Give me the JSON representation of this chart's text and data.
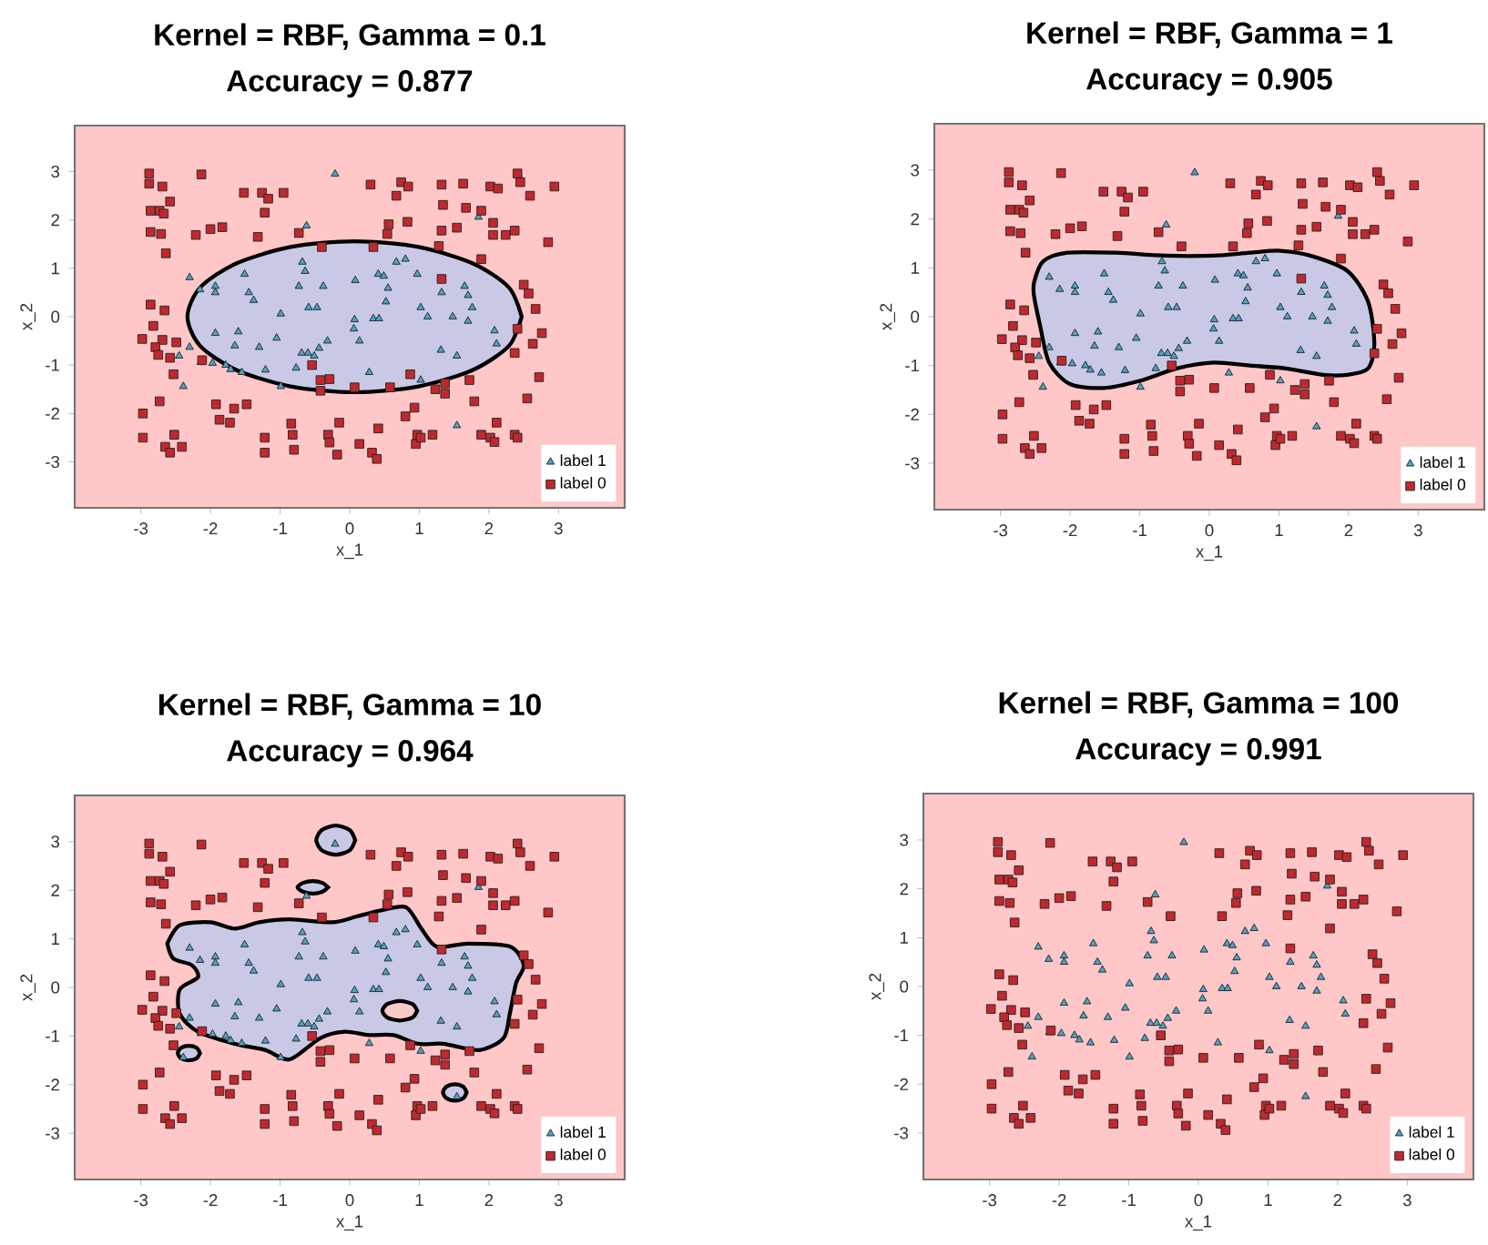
{
  "chart_data": [
    {
      "type": "scatter",
      "title": "Kernel = RBF, Gamma = 0.1",
      "subtitle": "Accuracy = 0.877",
      "xlabel": "x_1",
      "ylabel": "x_2",
      "xlim": [
        -3.95,
        3.95
      ],
      "ylim": [
        -3.95,
        3.95
      ],
      "xticks": [
        -3,
        -2,
        -1,
        0,
        1,
        2,
        3
      ],
      "yticks": [
        -3,
        -2,
        -1,
        0,
        1,
        2,
        3
      ],
      "legend": "bottom right",
      "series": [
        {
          "type": "area",
          "color": "#c9c9e6",
          "x": [
            2.47,
            2.29,
            1.77,
            0.99,
            0.07,
            -0.85,
            -1.63,
            -2.15,
            -2.33,
            -2.15,
            -1.63,
            -0.85,
            0.07,
            0.99,
            1.77,
            2.29,
            2.47
          ],
          "values": [
            0,
            0.6,
            1.1,
            1.44,
            1.56,
            1.44,
            1.1,
            0.6,
            0,
            -0.6,
            -1.1,
            -1.44,
            -1.56,
            -1.44,
            -1.1,
            -0.6,
            0
          ]
        },
        {
          "name": "label 1",
          "color": "#4aa3c8",
          "marker": "triangle",
          "x": [
            -0.21,
            -0.62,
            1.85,
            -2.3,
            -2.15,
            -1.93,
            -1.93,
            -1.51,
            -1.45,
            -1.38,
            -0.99,
            -0.73,
            -0.64,
            -0.68,
            -0.59,
            -0.47,
            -0.38,
            0.08,
            0.07,
            0.06,
            0.14,
            0.34,
            0.42,
            0.41,
            0.49,
            0.52,
            0.55,
            0.67,
            0.8,
            0.97,
            1.02,
            1.12,
            1.32,
            1.48,
            1.65,
            1.7,
            1.76,
            1.7,
            2.08,
            2.11,
            -2.3,
            -2.45,
            -2.39,
            -2.14,
            -1.93,
            -1.97,
            -1.78,
            -1.71,
            -1.55,
            -1.6,
            -1.65,
            -1.3,
            -1.21,
            -1.05,
            -0.99,
            -0.77,
            -0.69,
            -0.6,
            -0.51,
            -0.44,
            -0.32,
            0.28,
            1.02,
            1.31,
            1.54,
            1.54
          ],
          "values": [
            2.95,
            1.88,
            2.06,
            0.81,
            0.56,
            0.63,
            0.5,
            0.88,
            0.5,
            0.34,
            0.06,
            0.63,
            0.94,
            1.13,
            0.19,
            0.19,
            0.63,
            0.75,
            -0.06,
            -0.25,
            -0.5,
            -0.04,
            -0.04,
            0.88,
            0.84,
            0.31,
            0.59,
            1.13,
            1.19,
            0.88,
            0.19,
            0,
            0.5,
            0,
            0.63,
            0.44,
            0.19,
            -0.09,
            -0.29,
            -0.56,
            -0.63,
            -0.81,
            -1.44,
            -0.94,
            -0.34,
            -0.96,
            -1.0,
            -1.09,
            -1.15,
            -0.31,
            -0.6,
            -0.63,
            -1.1,
            -0.44,
            -1.44,
            -1.06,
            -0.75,
            -0.75,
            -0.81,
            -0.65,
            -0.5,
            -1.15,
            -1.31,
            -0.69,
            -0.81,
            -2.25
          ]
        },
        {
          "name": "label 0",
          "color": "#c0282d",
          "marker": "square",
          "x": [
            -2.88,
            -2.88,
            -2.69,
            -2.58,
            -2.86,
            -2.73,
            -2.67,
            -2.86,
            -2.71,
            -2.64,
            -2.13,
            -1.52,
            -1.26,
            -1.17,
            -1.22,
            -1.32,
            -0.95,
            -0.73,
            -0.4,
            -2.21,
            -2.0,
            -1.83,
            0.3,
            0.67,
            0.74,
            0.84,
            0.83,
            0.56,
            0.54,
            0.34,
            1.32,
            1.63,
            2.02,
            2.13,
            2.41,
            2.45,
            2.59,
            2.94,
            1.34,
            1.67,
            1.89,
            2.06,
            1.54,
            1.32,
            2.06,
            2.24,
            2.37,
            2.85,
            1.28,
            1.89,
            2.5,
            2.57,
            2.67,
            2.76,
            2.63,
            2.41,
            2.37,
            2.72,
            2.55,
            1.32,
            -2.86,
            -2.66,
            -2.82,
            -2.98,
            -2.69,
            -2.79,
            -2.75,
            -2.58,
            -2.49,
            -2.12,
            -2.53,
            -2.73,
            -2.97,
            -2.97,
            -2.52,
            -2.65,
            -2.58,
            -2.41,
            -1.92,
            -1.87,
            -1.72,
            -1.66,
            -1.48,
            -1.22,
            -1.22,
            -0.84,
            -0.82,
            -0.8,
            -0.54,
            -0.42,
            -0.29,
            -0.42,
            -0.31,
            -0.29,
            -0.15,
            -0.18,
            0.07,
            0.14,
            0.41,
            0.32,
            0.39,
            0.58,
            0.87,
            0.93,
            0.8,
            0.97,
            0.95,
            1.02,
            1.19,
            1.23,
            1.37,
            1.37,
            1.72,
            1.79,
            1.89,
            2.02,
            2.08,
            2.11,
            2.37,
            2.41
          ],
          "values": [
            2.96,
            2.75,
            2.69,
            2.38,
            2.19,
            2.19,
            2.13,
            1.75,
            1.71,
            1.31,
            2.94,
            2.56,
            2.56,
            2.44,
            2.15,
            1.65,
            2.56,
            1.73,
            1.44,
            1.69,
            1.81,
            1.85,
            2.73,
            2.5,
            2.78,
            2.69,
            1.96,
            1.91,
            1.71,
            1.44,
            2.73,
            2.75,
            2.69,
            2.65,
            2.96,
            2.78,
            2.5,
            2.69,
            2.31,
            2.25,
            2.19,
            1.94,
            1.84,
            1.78,
            1.69,
            1.69,
            1.78,
            1.54,
            1.46,
            1.19,
            0.66,
            0.48,
            0.16,
            -0.34,
            -0.56,
            -0.25,
            -0.75,
            -1.25,
            -1.69,
            0.78,
            0.25,
            0.13,
            -0.19,
            -0.46,
            -0.48,
            -0.63,
            -0.79,
            -0.85,
            -0.53,
            -0.9,
            -1.19,
            -1.75,
            -2.0,
            -2.5,
            -2.44,
            -2.69,
            -2.81,
            -2.69,
            -1.81,
            -2.13,
            -2.19,
            -1.9,
            -1.81,
            -2.5,
            -2.81,
            -2.21,
            -2.44,
            -2.75,
            -1.0,
            -1.31,
            -1.29,
            -1.53,
            -2.44,
            -2.6,
            -2.19,
            -2.85,
            -1.46,
            -2.63,
            -2.31,
            -2.81,
            -2.94,
            -1.46,
            -1.19,
            -1.88,
            -2.06,
            -2.44,
            -2.63,
            -2.5,
            -2.44,
            -1.5,
            -1.59,
            -1.38,
            -1.31,
            -1.75,
            -2.44,
            -2.5,
            -2.59,
            -2.19,
            -2.44,
            -2.5
          ]
        }
      ]
    },
    {
      "type": "scatter",
      "title": "Kernel = RBF, Gamma = 1",
      "subtitle": "Accuracy = 0.905",
      "xlabel": "x_1",
      "ylabel": "x_2",
      "xlim": [
        -3.95,
        3.95
      ],
      "ylim": [
        -3.95,
        3.95
      ],
      "xticks": [
        -3,
        -2,
        -1,
        0,
        1,
        2,
        3
      ],
      "yticks": [
        -3,
        -2,
        -1,
        0,
        1,
        2,
        3
      ],
      "legend": "bottom right",
      "series": [
        {
          "type": "area",
          "color": "#c9c9e6",
          "x": [
            -2.52,
            -2.39,
            -2.04,
            -1.34,
            -0.64,
            0.06,
            0.58,
            1.02,
            1.45,
            1.98,
            2.28,
            2.37,
            2.28,
            1.98,
            1.63,
            1.1,
            0.58,
            0.06,
            -0.47,
            -0.99,
            -1.51,
            -2.0,
            -2.3,
            -2.43,
            -2.52,
            -2.52
          ],
          "values": [
            0.69,
            1.13,
            1.31,
            1.31,
            1.25,
            1.25,
            1.31,
            1.35,
            1.25,
            0.94,
            0.31,
            -0.56,
            -1.06,
            -1.19,
            -1.19,
            -1.06,
            -1.0,
            -0.94,
            -1.06,
            -1.31,
            -1.46,
            -1.38,
            -0.94,
            -0.19,
            0.44,
            0.69
          ]
        },
        {
          "name": "label 1",
          "color": "#4aa3c8",
          "marker": "triangle",
          "x": [
            -0.21,
            -0.62,
            1.85,
            -2.3,
            -2.15,
            -1.93,
            -1.93,
            -1.51,
            -1.45,
            -1.38,
            -0.99,
            -0.73,
            -0.64,
            -0.68,
            -0.59,
            -0.47,
            -0.38,
            0.08,
            0.07,
            0.06,
            0.14,
            0.34,
            0.42,
            0.41,
            0.49,
            0.52,
            0.55,
            0.67,
            0.8,
            0.97,
            1.02,
            1.12,
            1.32,
            1.48,
            1.65,
            1.7,
            1.76,
            1.7,
            2.08,
            2.11,
            -2.3,
            -2.45,
            -2.39,
            -2.14,
            -1.93,
            -1.97,
            -1.78,
            -1.71,
            -1.55,
            -1.6,
            -1.65,
            -1.3,
            -1.21,
            -1.05,
            -0.99,
            -0.77,
            -0.69,
            -0.6,
            -0.51,
            -0.44,
            -0.32,
            0.28,
            1.02,
            1.31,
            1.54,
            1.54
          ],
          "values": [
            2.95,
            1.88,
            2.06,
            0.81,
            0.56,
            0.63,
            0.5,
            0.88,
            0.5,
            0.34,
            0.06,
            0.63,
            0.94,
            1.13,
            0.19,
            0.19,
            0.63,
            0.75,
            -0.06,
            -0.25,
            -0.5,
            -0.04,
            -0.04,
            0.88,
            0.84,
            0.31,
            0.59,
            1.13,
            1.19,
            0.88,
            0.19,
            0,
            0.5,
            0,
            0.63,
            0.44,
            0.19,
            -0.09,
            -0.29,
            -0.56,
            -0.63,
            -0.81,
            -1.44,
            -0.94,
            -0.34,
            -0.96,
            -1.0,
            -1.09,
            -1.15,
            -0.31,
            -0.6,
            -0.63,
            -1.1,
            -0.44,
            -1.44,
            -1.06,
            -0.75,
            -0.75,
            -0.81,
            -0.65,
            -0.5,
            -1.15,
            -1.31,
            -0.69,
            -0.81,
            -2.25
          ]
        },
        {
          "name": "label 0",
          "color": "#c0282d",
          "marker": "square",
          "x": [
            -2.88,
            -2.88,
            -2.69,
            -2.58,
            -2.86,
            -2.73,
            -2.67,
            -2.86,
            -2.71,
            -2.64,
            -2.13,
            -1.52,
            -1.26,
            -1.17,
            -1.22,
            -1.32,
            -0.95,
            -0.73,
            -0.4,
            -2.21,
            -2.0,
            -1.83,
            0.3,
            0.67,
            0.74,
            0.84,
            0.83,
            0.56,
            0.54,
            0.34,
            1.32,
            1.63,
            2.02,
            2.13,
            2.41,
            2.45,
            2.59,
            2.94,
            1.34,
            1.67,
            1.89,
            2.06,
            1.54,
            1.32,
            2.06,
            2.24,
            2.37,
            2.85,
            1.28,
            1.89,
            2.5,
            2.57,
            2.67,
            2.76,
            2.63,
            2.41,
            2.37,
            2.72,
            2.55,
            1.32,
            -2.86,
            -2.66,
            -2.82,
            -2.98,
            -2.69,
            -2.79,
            -2.75,
            -2.58,
            -2.49,
            -2.12,
            -2.53,
            -2.73,
            -2.97,
            -2.97,
            -2.52,
            -2.65,
            -2.58,
            -2.41,
            -1.92,
            -1.87,
            -1.72,
            -1.66,
            -1.48,
            -1.22,
            -1.22,
            -0.84,
            -0.82,
            -0.8,
            -0.54,
            -0.42,
            -0.29,
            -0.42,
            -0.31,
            -0.29,
            -0.15,
            -0.18,
            0.07,
            0.14,
            0.41,
            0.32,
            0.39,
            0.58,
            0.87,
            0.93,
            0.8,
            0.97,
            0.95,
            1.02,
            1.19,
            1.23,
            1.37,
            1.37,
            1.72,
            1.79,
            1.89,
            2.02,
            2.08,
            2.11,
            2.37,
            2.41
          ],
          "values": [
            2.96,
            2.75,
            2.69,
            2.38,
            2.19,
            2.19,
            2.13,
            1.75,
            1.71,
            1.31,
            2.94,
            2.56,
            2.56,
            2.44,
            2.15,
            1.65,
            2.56,
            1.73,
            1.44,
            1.69,
            1.81,
            1.85,
            2.73,
            2.5,
            2.78,
            2.69,
            1.96,
            1.91,
            1.71,
            1.44,
            2.73,
            2.75,
            2.69,
            2.65,
            2.96,
            2.78,
            2.5,
            2.69,
            2.31,
            2.25,
            2.19,
            1.94,
            1.84,
            1.78,
            1.69,
            1.69,
            1.78,
            1.54,
            1.46,
            1.19,
            0.66,
            0.48,
            0.16,
            -0.34,
            -0.56,
            -0.25,
            -0.75,
            -1.25,
            -1.69,
            0.78,
            0.25,
            0.13,
            -0.19,
            -0.46,
            -0.48,
            -0.63,
            -0.79,
            -0.85,
            -0.53,
            -0.9,
            -1.19,
            -1.75,
            -2.0,
            -2.5,
            -2.44,
            -2.69,
            -2.81,
            -2.69,
            -1.81,
            -2.13,
            -2.19,
            -1.9,
            -1.81,
            -2.5,
            -2.81,
            -2.21,
            -2.44,
            -2.75,
            -1.0,
            -1.31,
            -1.29,
            -1.53,
            -2.44,
            -2.6,
            -2.19,
            -2.85,
            -1.46,
            -2.63,
            -2.31,
            -2.81,
            -2.94,
            -1.46,
            -1.19,
            -1.88,
            -2.06,
            -2.44,
            -2.63,
            -2.5,
            -2.44,
            -1.5,
            -1.59,
            -1.38,
            -1.31,
            -1.75,
            -2.44,
            -2.5,
            -2.59,
            -2.19,
            -2.44,
            -2.5
          ]
        }
      ]
    },
    {
      "type": "scatter",
      "title": "Kernel = RBF, Gamma = 10",
      "subtitle": "Accuracy = 0.964",
      "xlabel": "x_1",
      "ylabel": "x_2",
      "xlim": [
        -3.95,
        3.95
      ],
      "ylim": [
        -3.95,
        3.95
      ],
      "xticks": [
        -3,
        -2,
        -1,
        0,
        1,
        2,
        3
      ],
      "yticks": [
        -3,
        -2,
        -1,
        0,
        1,
        2,
        3
      ],
      "legend": "bottom right",
      "series": [
        {
          "type": "area",
          "color": "#c9c9e6",
          "x": [
            -2.62,
            -2.44,
            -2.0,
            -1.65,
            -1.3,
            -0.86,
            -0.25,
            0.1,
            0.46,
            0.81,
            1.03,
            1.25,
            1.69,
            2.3,
            2.5,
            2.39,
            2.3,
            2.21,
            1.86,
            1.34,
            0.98,
            0.63,
            0.28,
            -0.07,
            -0.42,
            -0.86,
            -1.21,
            -1.65,
            -2.18,
            -2.44,
            -2.44,
            -2.18,
            -2.27,
            -2.53,
            -2.62
          ],
          "values": [
            0.9,
            1.28,
            1.34,
            1.21,
            1.34,
            1.4,
            1.34,
            1.46,
            1.59,
            1.65,
            1.21,
            0.84,
            0.9,
            0.84,
            0.46,
            0.09,
            -0.54,
            -1.04,
            -1.29,
            -1.16,
            -1.16,
            -0.98,
            -0.98,
            -0.91,
            -1.04,
            -1.48,
            -1.29,
            -1.16,
            -0.91,
            -0.54,
            -0.04,
            0.21,
            0.46,
            0.59,
            0.9
          ]
        },
        {
          "type": "area",
          "color": "#f9c9c9",
          "x": [
            0.97,
            0.9,
            0.72,
            0.54,
            0.47,
            0.54,
            0.72,
            0.9,
            0.97
          ],
          "values": [
            -0.48,
            -0.34,
            -0.28,
            -0.34,
            -0.48,
            -0.62,
            -0.68,
            -0.62,
            -0.48
          ]
        },
        {
          "type": "area",
          "color": "#c9c9e6",
          "x": [
            0.08,
            0.0,
            -0.2,
            -0.4,
            -0.48,
            -0.4,
            -0.2,
            0.0,
            0.08
          ],
          "values": [
            3.03,
            3.24,
            3.33,
            3.24,
            3.03,
            2.82,
            2.73,
            2.82,
            3.03
          ]
        },
        {
          "type": "area",
          "color": "#c9c9e6",
          "x": [
            1.68,
            1.63,
            1.51,
            1.39,
            1.34,
            1.39,
            1.51,
            1.63,
            1.68
          ],
          "values": [
            -2.16,
            -2.04,
            -1.99,
            -2.04,
            -2.16,
            -2.28,
            -2.33,
            -2.28,
            -2.16
          ]
        },
        {
          "type": "area",
          "color": "#c9c9e6",
          "x": [
            -0.31,
            -0.39,
            -0.53,
            -0.67,
            -0.75,
            -0.67,
            -0.53,
            -0.39,
            -0.31
          ],
          "values": [
            2.06,
            2.15,
            2.19,
            2.15,
            2.06,
            1.97,
            1.93,
            1.97,
            2.06
          ]
        },
        {
          "type": "area",
          "color": "#c9c9e6",
          "x": [
            -2.15,
            -2.2,
            -2.31,
            -2.42,
            -2.47,
            -2.42,
            -2.31,
            -2.2,
            -2.15
          ],
          "values": [
            -1.35,
            -1.24,
            -1.2,
            -1.24,
            -1.35,
            -1.46,
            -1.5,
            -1.46,
            -1.35
          ]
        },
        {
          "name": "label 1",
          "color": "#4aa3c8",
          "marker": "triangle",
          "x": [
            -0.21,
            -0.62,
            1.85,
            -2.3,
            -2.15,
            -1.93,
            -1.93,
            -1.51,
            -1.45,
            -1.38,
            -0.99,
            -0.73,
            -0.64,
            -0.68,
            -0.59,
            -0.47,
            -0.38,
            0.08,
            0.07,
            0.06,
            0.14,
            0.34,
            0.42,
            0.41,
            0.49,
            0.52,
            0.55,
            0.67,
            0.8,
            0.97,
            1.02,
            1.12,
            1.32,
            1.48,
            1.65,
            1.7,
            1.76,
            1.7,
            2.08,
            2.11,
            -2.3,
            -2.45,
            -2.39,
            -2.14,
            -1.93,
            -1.97,
            -1.78,
            -1.71,
            -1.55,
            -1.6,
            -1.65,
            -1.3,
            -1.21,
            -1.05,
            -0.99,
            -0.77,
            -0.69,
            -0.6,
            -0.51,
            -0.44,
            -0.32,
            0.28,
            1.02,
            1.31,
            1.54,
            1.54
          ],
          "values": [
            2.95,
            1.88,
            2.06,
            0.81,
            0.56,
            0.63,
            0.5,
            0.88,
            0.5,
            0.34,
            0.06,
            0.63,
            0.94,
            1.13,
            0.19,
            0.19,
            0.63,
            0.75,
            -0.06,
            -0.25,
            -0.5,
            -0.04,
            -0.04,
            0.88,
            0.84,
            0.31,
            0.59,
            1.13,
            1.19,
            0.88,
            0.19,
            0,
            0.5,
            0,
            0.63,
            0.44,
            0.19,
            -0.09,
            -0.29,
            -0.56,
            -0.63,
            -0.81,
            -1.44,
            -0.94,
            -0.34,
            -0.96,
            -1.0,
            -1.09,
            -1.15,
            -0.31,
            -0.6,
            -0.63,
            -1.1,
            -0.44,
            -1.44,
            -1.06,
            -0.75,
            -0.75,
            -0.81,
            -0.65,
            -0.5,
            -1.15,
            -1.31,
            -0.69,
            -0.81,
            -2.25
          ]
        },
        {
          "name": "label 0",
          "color": "#c0282d",
          "marker": "square",
          "x": [
            -2.88,
            -2.88,
            -2.69,
            -2.58,
            -2.86,
            -2.73,
            -2.67,
            -2.86,
            -2.71,
            -2.64,
            -2.13,
            -1.52,
            -1.26,
            -1.17,
            -1.22,
            -1.32,
            -0.95,
            -0.73,
            -0.4,
            -2.21,
            -2.0,
            -1.83,
            0.3,
            0.67,
            0.74,
            0.84,
            0.83,
            0.56,
            0.54,
            0.34,
            1.32,
            1.63,
            2.02,
            2.13,
            2.41,
            2.45,
            2.59,
            2.94,
            1.34,
            1.67,
            1.89,
            2.06,
            1.54,
            1.32,
            2.06,
            2.24,
            2.37,
            2.85,
            1.28,
            1.89,
            2.5,
            2.57,
            2.67,
            2.76,
            2.63,
            2.41,
            2.37,
            2.72,
            2.55,
            1.32,
            -2.86,
            -2.66,
            -2.82,
            -2.98,
            -2.69,
            -2.79,
            -2.75,
            -2.58,
            -2.49,
            -2.12,
            -2.53,
            -2.73,
            -2.97,
            -2.97,
            -2.52,
            -2.65,
            -2.58,
            -2.41,
            -1.92,
            -1.87,
            -1.72,
            -1.66,
            -1.48,
            -1.22,
            -1.22,
            -0.84,
            -0.82,
            -0.8,
            -0.54,
            -0.42,
            -0.29,
            -0.42,
            -0.31,
            -0.29,
            -0.15,
            -0.18,
            0.07,
            0.14,
            0.41,
            0.32,
            0.39,
            0.58,
            0.87,
            0.93,
            0.8,
            0.97,
            0.95,
            1.02,
            1.19,
            1.23,
            1.37,
            1.37,
            1.72,
            1.79,
            1.89,
            2.02,
            2.08,
            2.11,
            2.37,
            2.41
          ],
          "values": [
            2.96,
            2.75,
            2.69,
            2.38,
            2.19,
            2.19,
            2.13,
            1.75,
            1.71,
            1.31,
            2.94,
            2.56,
            2.56,
            2.44,
            2.15,
            1.65,
            2.56,
            1.73,
            1.44,
            1.69,
            1.81,
            1.85,
            2.73,
            2.5,
            2.78,
            2.69,
            1.96,
            1.91,
            1.71,
            1.44,
            2.73,
            2.75,
            2.69,
            2.65,
            2.96,
            2.78,
            2.5,
            2.69,
            2.31,
            2.25,
            2.19,
            1.94,
            1.84,
            1.78,
            1.69,
            1.69,
            1.78,
            1.54,
            1.46,
            1.19,
            0.66,
            0.48,
            0.16,
            -0.34,
            -0.56,
            -0.25,
            -0.75,
            -1.25,
            -1.69,
            0.78,
            0.25,
            0.13,
            -0.19,
            -0.46,
            -0.48,
            -0.63,
            -0.79,
            -0.85,
            -0.53,
            -0.9,
            -1.19,
            -1.75,
            -2.0,
            -2.5,
            -2.44,
            -2.69,
            -2.81,
            -2.69,
            -1.81,
            -2.13,
            -2.19,
            -1.9,
            -1.81,
            -2.5,
            -2.81,
            -2.21,
            -2.44,
            -2.75,
            -1.0,
            -1.31,
            -1.29,
            -1.53,
            -2.44,
            -2.6,
            -2.19,
            -2.85,
            -1.46,
            -2.63,
            -2.31,
            -2.81,
            -2.94,
            -1.46,
            -1.19,
            -1.88,
            -2.06,
            -2.44,
            -2.63,
            -2.5,
            -2.44,
            -1.5,
            -1.59,
            -1.38,
            -1.31,
            -1.75,
            -2.44,
            -2.5,
            -2.59,
            -2.19,
            -2.44,
            -2.5
          ]
        }
      ]
    },
    {
      "type": "scatter",
      "title": "Kernel = RBF, Gamma = 100",
      "subtitle": "Accuracy = 0.991",
      "xlabel": "x_1",
      "ylabel": "x_2",
      "xlim": [
        -3.95,
        3.95
      ],
      "ylim": [
        -3.95,
        3.95
      ],
      "xticks": [
        -3,
        -2,
        -1,
        0,
        1,
        2,
        3
      ],
      "yticks": [
        -3,
        -2,
        -1,
        0,
        1,
        2,
        3
      ],
      "legend": "bottom right",
      "series": [
        {
          "name": "label 1",
          "color": "#4aa3c8",
          "marker": "triangle",
          "x": [
            -0.21,
            -0.62,
            1.85,
            -2.3,
            -2.15,
            -1.93,
            -1.93,
            -1.51,
            -1.45,
            -1.38,
            -0.99,
            -0.73,
            -0.64,
            -0.68,
            -0.59,
            -0.47,
            -0.38,
            0.08,
            0.07,
            0.06,
            0.14,
            0.34,
            0.42,
            0.41,
            0.49,
            0.52,
            0.55,
            0.67,
            0.8,
            0.97,
            1.02,
            1.12,
            1.32,
            1.48,
            1.65,
            1.7,
            1.76,
            1.7,
            2.08,
            2.11,
            -2.3,
            -2.45,
            -2.39,
            -2.14,
            -1.93,
            -1.97,
            -1.78,
            -1.71,
            -1.55,
            -1.6,
            -1.65,
            -1.3,
            -1.21,
            -1.05,
            -0.99,
            -0.77,
            -0.69,
            -0.6,
            -0.51,
            -0.44,
            -0.32,
            0.28,
            1.02,
            1.31,
            1.54,
            1.54
          ],
          "values": [
            2.95,
            1.88,
            2.06,
            0.81,
            0.56,
            0.63,
            0.5,
            0.88,
            0.5,
            0.34,
            0.06,
            0.63,
            0.94,
            1.13,
            0.19,
            0.19,
            0.63,
            0.75,
            -0.06,
            -0.25,
            -0.5,
            -0.04,
            -0.04,
            0.88,
            0.84,
            0.31,
            0.59,
            1.13,
            1.19,
            0.88,
            0.19,
            0,
            0.5,
            0,
            0.63,
            0.44,
            0.19,
            -0.09,
            -0.29,
            -0.56,
            -0.63,
            -0.81,
            -1.44,
            -0.94,
            -0.34,
            -0.96,
            -1.0,
            -1.09,
            -1.15,
            -0.31,
            -0.6,
            -0.63,
            -1.1,
            -0.44,
            -1.44,
            -1.06,
            -0.75,
            -0.75,
            -0.81,
            -0.65,
            -0.5,
            -1.15,
            -1.31,
            -0.69,
            -0.81,
            -2.25
          ]
        },
        {
          "name": "label 0",
          "color": "#c0282d",
          "marker": "square",
          "x": [
            -2.88,
            -2.88,
            -2.69,
            -2.58,
            -2.86,
            -2.73,
            -2.67,
            -2.86,
            -2.71,
            -2.64,
            -2.13,
            -1.52,
            -1.26,
            -1.17,
            -1.22,
            -1.32,
            -0.95,
            -0.73,
            -0.4,
            -2.21,
            -2.0,
            -1.83,
            0.3,
            0.67,
            0.74,
            0.84,
            0.83,
            0.56,
            0.54,
            0.34,
            1.32,
            1.63,
            2.02,
            2.13,
            2.41,
            2.45,
            2.59,
            2.94,
            1.34,
            1.67,
            1.89,
            2.06,
            1.54,
            1.32,
            2.06,
            2.24,
            2.37,
            2.85,
            1.28,
            1.89,
            2.5,
            2.57,
            2.67,
            2.76,
            2.63,
            2.41,
            2.37,
            2.72,
            2.55,
            1.32,
            -2.86,
            -2.66,
            -2.82,
            -2.98,
            -2.69,
            -2.79,
            -2.75,
            -2.58,
            -2.49,
            -2.12,
            -2.53,
            -2.73,
            -2.97,
            -2.97,
            -2.52,
            -2.65,
            -2.58,
            -2.41,
            -1.92,
            -1.87,
            -1.72,
            -1.66,
            -1.48,
            -1.22,
            -1.22,
            -0.84,
            -0.82,
            -0.8,
            -0.54,
            -0.42,
            -0.29,
            -0.42,
            -0.31,
            -0.29,
            -0.15,
            -0.18,
            0.07,
            0.14,
            0.41,
            0.32,
            0.39,
            0.58,
            0.87,
            0.93,
            0.8,
            0.97,
            0.95,
            1.02,
            1.19,
            1.23,
            1.37,
            1.37,
            1.72,
            1.79,
            1.89,
            2.02,
            2.08,
            2.11,
            2.37,
            2.41
          ],
          "values": [
            2.96,
            2.75,
            2.69,
            2.38,
            2.19,
            2.19,
            2.13,
            1.75,
            1.71,
            1.31,
            2.94,
            2.56,
            2.56,
            2.44,
            2.15,
            1.65,
            2.56,
            1.73,
            1.44,
            1.69,
            1.81,
            1.85,
            2.73,
            2.5,
            2.78,
            2.69,
            1.96,
            1.91,
            1.71,
            1.44,
            2.73,
            2.75,
            2.69,
            2.65,
            2.96,
            2.78,
            2.5,
            2.69,
            2.31,
            2.25,
            2.19,
            1.94,
            1.84,
            1.78,
            1.69,
            1.69,
            1.78,
            1.54,
            1.46,
            1.19,
            0.66,
            0.48,
            0.16,
            -0.34,
            -0.56,
            -0.25,
            -0.75,
            -1.25,
            -1.69,
            0.78,
            0.25,
            0.13,
            -0.19,
            -0.46,
            -0.48,
            -0.63,
            -0.79,
            -0.85,
            -0.53,
            -0.9,
            -1.19,
            -1.75,
            -2.0,
            -2.5,
            -2.44,
            -2.69,
            -2.81,
            -2.69,
            -1.81,
            -2.13,
            -2.19,
            -1.9,
            -1.81,
            -2.5,
            -2.81,
            -2.21,
            -2.44,
            -2.75,
            -1.0,
            -1.31,
            -1.29,
            -1.53,
            -2.44,
            -2.6,
            -2.19,
            -2.85,
            -1.46,
            -2.63,
            -2.31,
            -2.81,
            -2.94,
            -1.46,
            -1.19,
            -1.88,
            -2.06,
            -2.44,
            -2.63,
            -2.5,
            -2.44,
            -1.5,
            -1.59,
            -1.38,
            -1.31,
            -1.75,
            -2.44,
            -2.5,
            -2.59,
            -2.19,
            -2.44,
            -2.5
          ]
        }
      ]
    }
  ]
}
